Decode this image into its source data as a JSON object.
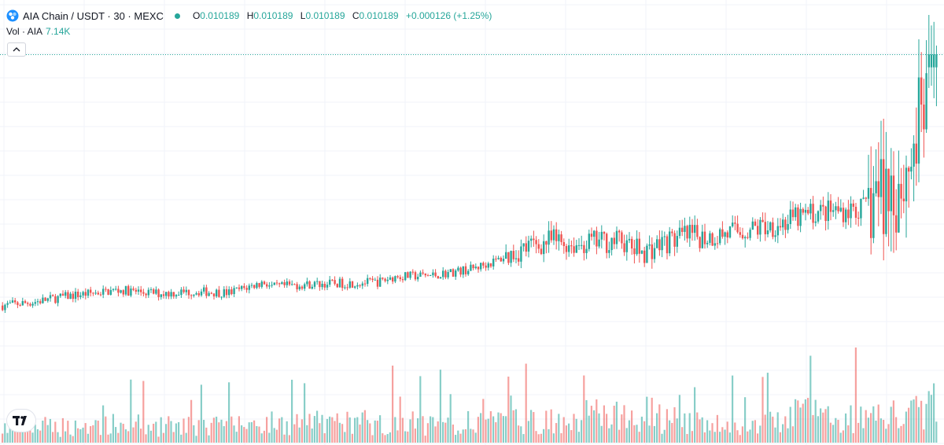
{
  "header": {
    "symbol": "AIA Chain / USDT · 30 · MEXC",
    "open_label": "O",
    "open": "0.010189",
    "high_label": "H",
    "high": "0.010189",
    "low_label": "L",
    "low": "0.010189",
    "close_label": "C",
    "close": "0.010189",
    "change": "+0.000126 (+1.25%)",
    "status_color": "#26a69a"
  },
  "volume": {
    "label": "Vol · AIA",
    "value": "7.14K"
  },
  "icons": {
    "coin": "aia-coin-icon",
    "collapse": "chevron-up-icon",
    "logo": "tradingview-logo-icon"
  },
  "colors": {
    "up": "#26a69a",
    "down": "#ef5350",
    "grid": "#f0f3fa",
    "last_price_line": "#26a69a"
  },
  "chart_data": {
    "type": "candlestick",
    "series": [
      {
        "name": "AIA Chain / USDT",
        "interval": "30"
      }
    ],
    "last_price": 0.010189,
    "trend": [
      [
        0,
        0.00645
      ],
      [
        40,
        0.0065
      ],
      [
        90,
        0.0066
      ],
      [
        150,
        0.00668
      ],
      [
        200,
        0.00663
      ],
      [
        250,
        0.00666
      ],
      [
        290,
        0.00664
      ],
      [
        335,
        0.0068
      ],
      [
        345,
        0.00672
      ],
      [
        380,
        0.00676
      ],
      [
        430,
        0.00678
      ],
      [
        480,
        0.0068
      ],
      [
        500,
        0.00688
      ],
      [
        550,
        0.0069
      ],
      [
        600,
        0.007
      ],
      [
        630,
        0.00712
      ],
      [
        660,
        0.00728
      ],
      [
        700,
        0.00742
      ],
      [
        730,
        0.00736
      ],
      [
        760,
        0.0074
      ],
      [
        790,
        0.00742
      ],
      [
        800,
        0.0073
      ],
      [
        820,
        0.00726
      ],
      [
        840,
        0.00738
      ],
      [
        870,
        0.00748
      ],
      [
        900,
        0.00748
      ],
      [
        940,
        0.00756
      ],
      [
        960,
        0.0076
      ],
      [
        1000,
        0.0077
      ],
      [
        1030,
        0.00782
      ],
      [
        1060,
        0.00786
      ],
      [
        1100,
        0.0079
      ],
      [
        1110,
        0.0081
      ],
      [
        1130,
        0.0082
      ],
      [
        1150,
        0.0084
      ],
      [
        1165,
        0.009
      ],
      [
        1175,
        0.0095
      ],
      [
        1182,
        0.0101
      ],
      [
        1188,
        0.01019
      ]
    ],
    "volume_profile": [
      [
        0,
        0.18
      ],
      [
        150,
        0.22
      ],
      [
        250,
        0.2
      ],
      [
        330,
        0.24
      ],
      [
        470,
        0.26
      ],
      [
        560,
        0.24
      ],
      [
        680,
        0.26
      ],
      [
        745,
        0.34
      ],
      [
        770,
        0.32
      ],
      [
        820,
        0.36
      ],
      [
        870,
        0.24
      ],
      [
        960,
        0.2
      ],
      [
        1000,
        0.3
      ],
      [
        1020,
        0.4
      ],
      [
        1060,
        0.3
      ],
      [
        1120,
        0.36
      ],
      [
        1150,
        0.3
      ],
      [
        1185,
        0.48
      ]
    ]
  }
}
